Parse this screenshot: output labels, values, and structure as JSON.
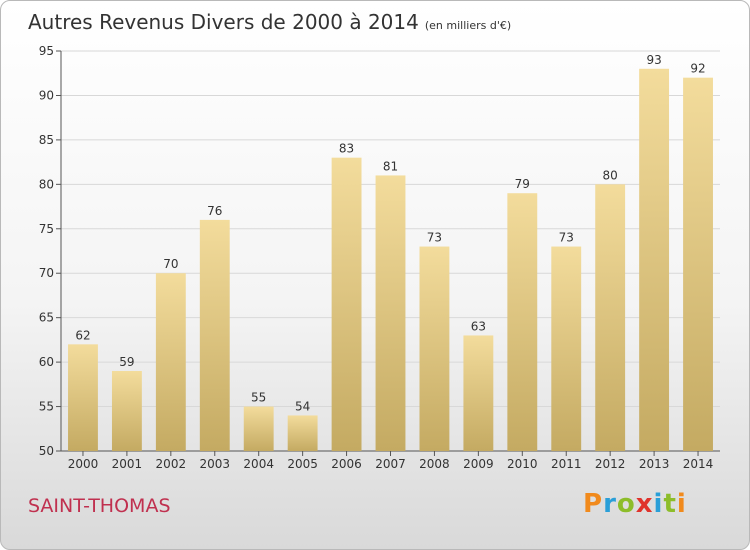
{
  "chart_data": {
    "type": "bar",
    "title": "Autres Revenus Divers de 2000 à 2014",
    "subtitle": "(en milliers d'€)",
    "categories": [
      "2000",
      "2001",
      "2002",
      "2003",
      "2004",
      "2005",
      "2006",
      "2007",
      "2008",
      "2009",
      "2010",
      "2011",
      "2012",
      "2013",
      "2014"
    ],
    "values": [
      62,
      59,
      70,
      76,
      55,
      54,
      83,
      81,
      73,
      63,
      79,
      73,
      80,
      93,
      92
    ],
    "ylim": [
      50,
      95
    ],
    "yticks": [
      50,
      55,
      60,
      65,
      70,
      75,
      80,
      85,
      90,
      95
    ],
    "grid": true,
    "bar_color_top": "#f3dc9c",
    "bar_color_bottom": "#c4aa62"
  },
  "footer": {
    "commune": "SAINT-THOMAS",
    "logo_text": "Proxiti",
    "logo_colors": [
      "#f18a1c",
      "#2a9fd8",
      "#8dbd2a",
      "#e0332c",
      "#2a9fd8",
      "#8dbd2a",
      "#f18a1c"
    ]
  }
}
